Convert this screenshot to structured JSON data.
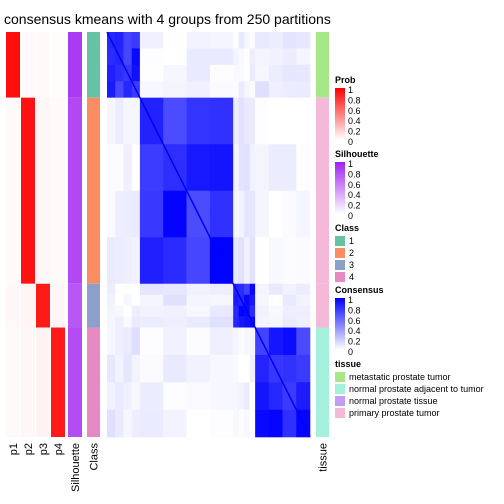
{
  "chart_data": {
    "type": "heatmap",
    "title": "consensus kmeans with 4 groups from 250 partitions",
    "column_labels": {
      "prob": [
        "p1",
        "p2",
        "p3",
        "p4"
      ],
      "silhouette": "Silhouette",
      "class": "Class",
      "tissue": "tissue"
    },
    "groups": [
      {
        "class": "1",
        "n": 12,
        "tissue": "metastatic prostate tumor",
        "silhouette": 0.88,
        "prob": [
          0.95,
          0.02,
          0.02,
          0.01
        ]
      },
      {
        "class": "2",
        "n": 34,
        "tissue": "primary prostate tumor",
        "silhouette": 0.82,
        "prob": [
          0.02,
          0.93,
          0.03,
          0.02
        ]
      },
      {
        "class": "3",
        "n": 8,
        "tissue": "primary prostate tumor",
        "silhouette": 0.75,
        "prob": [
          0.03,
          0.04,
          0.9,
          0.03
        ]
      },
      {
        "class": "4",
        "n": 20,
        "tissue": "normal prostate adjacent to tumor",
        "silhouette": 0.8,
        "prob": [
          0.02,
          0.03,
          0.05,
          0.9
        ]
      }
    ],
    "legends": [
      {
        "title": "Prob",
        "type": "gradient",
        "colors": [
          "#ffffff",
          "#ff0000"
        ],
        "ticks": [
          "1",
          "0.8",
          "0.6",
          "0.4",
          "0.2",
          "0"
        ]
      },
      {
        "title": "Silhouette",
        "type": "gradient",
        "colors": [
          "#ffffff",
          "#a020f0"
        ],
        "ticks": [
          "1",
          "0.8",
          "0.6",
          "0.4",
          "0.2",
          "0"
        ]
      },
      {
        "title": "Class",
        "type": "discrete",
        "items": [
          {
            "label": "1",
            "color": "#66c2a5"
          },
          {
            "label": "2",
            "color": "#fc8d62"
          },
          {
            "label": "3",
            "color": "#8da0cb"
          },
          {
            "label": "4",
            "color": "#e78ac3"
          }
        ]
      },
      {
        "title": "Consensus",
        "type": "gradient",
        "colors": [
          "#ffffff",
          "#0000ff"
        ],
        "ticks": [
          "1",
          "0.8",
          "0.6",
          "0.4",
          "0.2",
          "0"
        ]
      },
      {
        "title": "tissue",
        "type": "discrete",
        "items": [
          {
            "label": "metastatic prostate tumor",
            "color": "#a6e887"
          },
          {
            "label": "normal prostate adjacent to tumor",
            "color": "#a5f0dc"
          },
          {
            "label": "normal prostate tissue",
            "color": "#c49bf5"
          },
          {
            "label": "primary prostate tumor",
            "color": "#f4b8d8"
          }
        ]
      }
    ],
    "colors": {
      "prob": "#ff0000",
      "silhouette": "#a020f0",
      "consensus": "#0000ff"
    }
  }
}
